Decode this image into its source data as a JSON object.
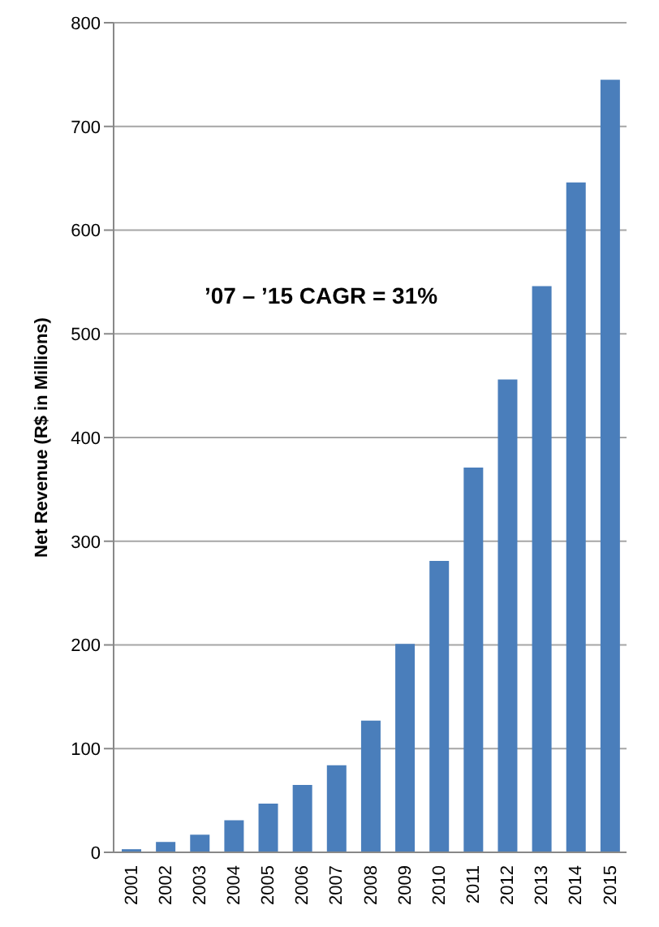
{
  "chart_data": {
    "type": "bar",
    "ylabel": "Net Revenue (R$ in Millions)",
    "categories": [
      "2001",
      "2002",
      "2003",
      "2004",
      "2005",
      "2006",
      "2007",
      "2008",
      "2009",
      "2010",
      "2011",
      "2012",
      "2013",
      "2014",
      "2015"
    ],
    "values": [
      3,
      10,
      17,
      31,
      47,
      65,
      84,
      127,
      201,
      281,
      371,
      456,
      546,
      646,
      745
    ],
    "color": "#4a7ebb",
    "ylim": [
      0,
      800
    ],
    "yticks": [
      0,
      100,
      200,
      300,
      400,
      500,
      600,
      700,
      800
    ],
    "grid": "y",
    "annotations": [
      "’07 – ’15 CAGR = 31%"
    ]
  }
}
